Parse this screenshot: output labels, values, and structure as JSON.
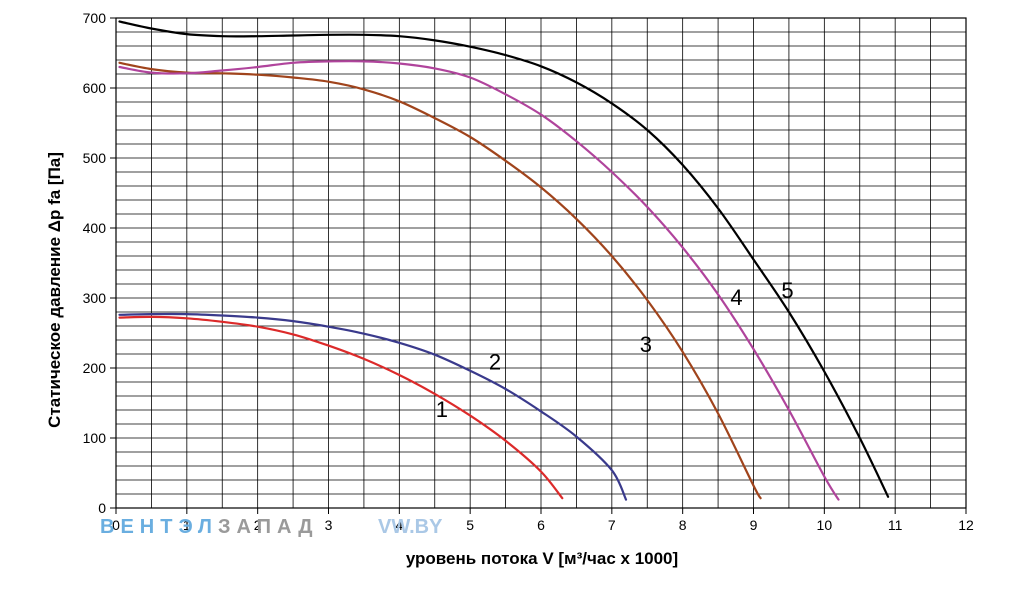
{
  "chart_data": {
    "type": "line",
    "title": "",
    "xlabel": "уровень потока  V [м³/час х 1000]",
    "ylabel": "Статическое давление  Δp fa [Па]",
    "xlim": [
      0,
      12
    ],
    "ylim": [
      0,
      700
    ],
    "xticks": [
      "0",
      "1",
      "2",
      "3",
      "4",
      "5",
      "6",
      "7",
      "8",
      "9",
      "10",
      "11",
      "12"
    ],
    "yticks": [
      "0",
      "100",
      "200",
      "300",
      "400",
      "500",
      "600",
      "700"
    ],
    "grid": true,
    "series": [
      {
        "name": "1",
        "color": "#dc2a2a",
        "x": [
          0.05,
          0.5,
          1.0,
          1.5,
          2.0,
          2.5,
          3.0,
          3.5,
          4.0,
          4.5,
          5.0,
          5.5,
          6.0,
          6.3
        ],
        "y": [
          272,
          273,
          271,
          266,
          259,
          248,
          232,
          213,
          190,
          163,
          132,
          96,
          52,
          14
        ]
      },
      {
        "name": "2",
        "color": "#3a3a8c",
        "x": [
          0.05,
          0.5,
          1.0,
          1.5,
          2.0,
          2.5,
          3.0,
          3.5,
          4.0,
          4.5,
          5.0,
          5.5,
          6.0,
          6.5,
          7.0,
          7.2
        ],
        "y": [
          276,
          277,
          277,
          275,
          272,
          267,
          259,
          249,
          236,
          219,
          196,
          170,
          138,
          102,
          54,
          12
        ]
      },
      {
        "name": "3",
        "color": "#a0441c",
        "x": [
          0.05,
          0.5,
          1.0,
          1.5,
          2.0,
          2.5,
          3.0,
          3.5,
          4.0,
          4.5,
          5.0,
          5.5,
          6.0,
          6.5,
          7.0,
          7.5,
          8.0,
          8.5,
          9.0,
          9.1
        ],
        "y": [
          636,
          627,
          622,
          621,
          619,
          615,
          609,
          598,
          581,
          557,
          530,
          496,
          458,
          413,
          360,
          297,
          223,
          135,
          32,
          14
        ]
      },
      {
        "name": "4",
        "color": "#b0449c",
        "x": [
          0.05,
          0.5,
          1.0,
          1.5,
          2.0,
          2.5,
          3.0,
          3.5,
          4.0,
          4.5,
          5.0,
          5.5,
          6.0,
          6.5,
          7.0,
          7.5,
          8.0,
          8.5,
          9.0,
          9.5,
          10.0,
          10.2
        ],
        "y": [
          630,
          622,
          621,
          625,
          630,
          636,
          638,
          638,
          635,
          628,
          615,
          591,
          562,
          524,
          480,
          430,
          372,
          305,
          227,
          140,
          45,
          12
        ]
      },
      {
        "name": "5",
        "color": "#000000",
        "x": [
          0.05,
          0.5,
          1.0,
          1.5,
          2.0,
          2.5,
          3.0,
          3.5,
          4.0,
          4.5,
          5.0,
          5.5,
          6.0,
          6.5,
          7.0,
          7.5,
          8.0,
          8.5,
          9.0,
          9.5,
          10.0,
          10.5,
          10.9
        ],
        "y": [
          695,
          685,
          677,
          674,
          674,
          675,
          676,
          676,
          674,
          668,
          659,
          647,
          631,
          608,
          578,
          540,
          490,
          428,
          355,
          280,
          195,
          100,
          16
        ]
      }
    ],
    "curve_labels": [
      {
        "text": "1",
        "x": 4.6,
        "y": 130
      },
      {
        "text": "2",
        "x": 5.35,
        "y": 198
      },
      {
        "text": "3",
        "x": 7.48,
        "y": 223
      },
      {
        "text": "4",
        "x": 8.76,
        "y": 290
      },
      {
        "text": "5",
        "x": 9.48,
        "y": 300
      }
    ]
  },
  "watermark": {
    "brand_prefix": "ВЕНТЭЛ",
    "brand_suffix": "ЗАПАД",
    "site": "VW.BY",
    "prefix_color": "#6aaee0",
    "suffix_color": "#9a9a9a",
    "site_color": "#aac8e6"
  }
}
